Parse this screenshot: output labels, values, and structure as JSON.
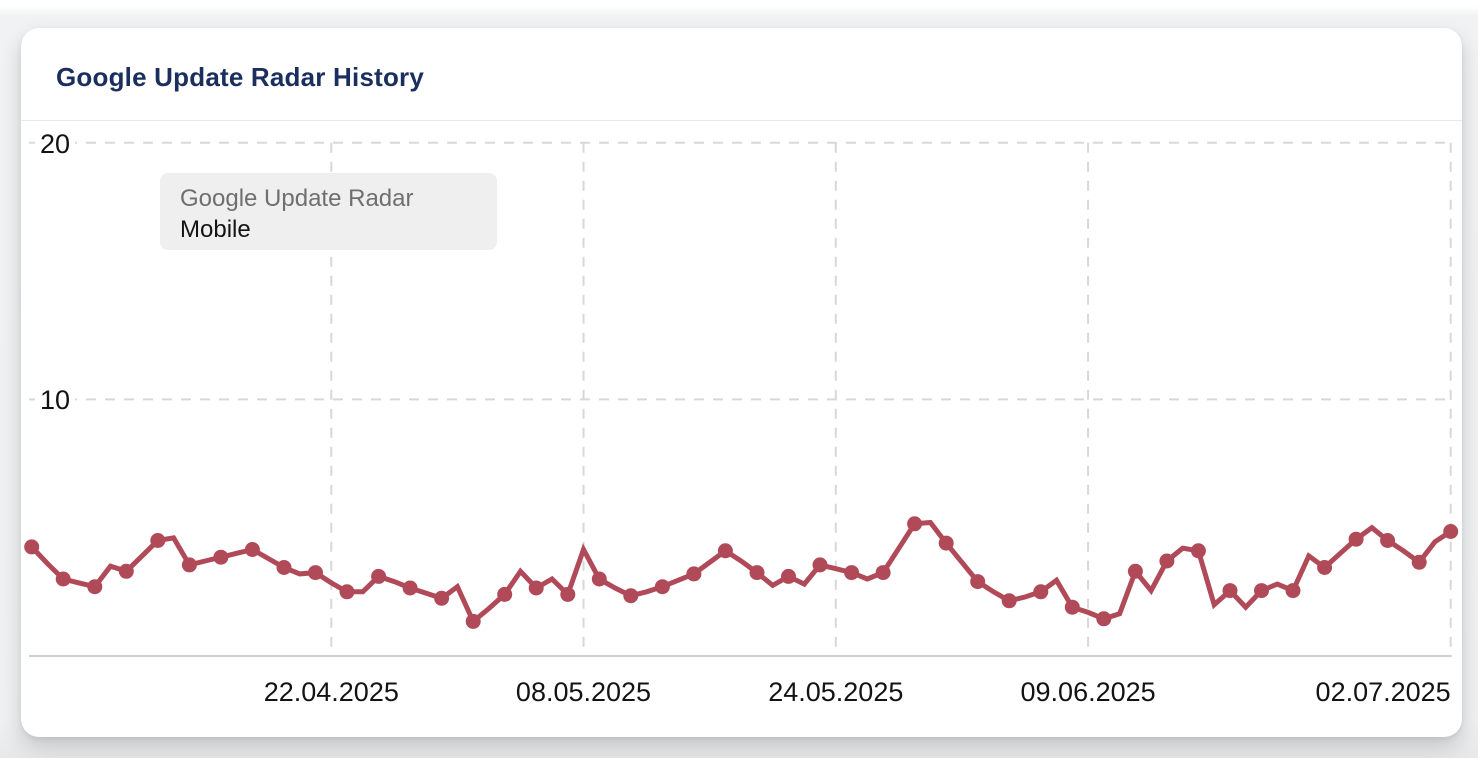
{
  "page": {
    "background": "#f0f1f2"
  },
  "card": {
    "title": "Google Update Radar History"
  },
  "legend": {
    "series_label": "Google Update Radar",
    "device_label": "Mobile"
  },
  "colors": {
    "title": "#1b2f5e",
    "line": "#b04a59",
    "marker": "#b04a59",
    "grid": "#d8d8d8",
    "axis_line": "#cfcfcf",
    "tick_text": "#121212",
    "legend_bg": "#efefef",
    "legend_label": "#6f6f6f",
    "legend_value": "#141414",
    "card_bg": "#ffffff"
  },
  "chart_data": {
    "type": "line",
    "title": "Google Update Radar History",
    "xlabel": "",
    "ylabel": "",
    "ylim": [
      0,
      20
    ],
    "y_ticks": [
      {
        "label": "20",
        "value": 20
      },
      {
        "label": "10",
        "value": 10
      }
    ],
    "x_ticks": [
      {
        "label": "22.04.2025",
        "index": 19,
        "align": "center"
      },
      {
        "label": "08.05.2025",
        "index": 35,
        "align": "center"
      },
      {
        "label": "24.05.2025",
        "index": 51,
        "align": "center"
      },
      {
        "label": "09.06.2025",
        "index": 67,
        "align": "center"
      },
      {
        "label": "02.07.2025",
        "index": 90,
        "align": "right"
      }
    ],
    "grid": "dashed",
    "legend_position": "top-left-inside",
    "marker_rule": "every-second-point-starting-first",
    "series": [
      {
        "name": "Google Update Radar",
        "device": "Mobile",
        "color": "#b04a59",
        "values": [
          4.25,
          3.6,
          3.0,
          2.85,
          2.7,
          3.5,
          3.3,
          3.9,
          4.5,
          4.6,
          3.55,
          3.7,
          3.85,
          4.0,
          4.15,
          3.8,
          3.45,
          3.2,
          3.25,
          2.85,
          2.5,
          2.5,
          3.1,
          2.9,
          2.65,
          2.45,
          2.25,
          2.7,
          1.35,
          1.85,
          2.4,
          3.3,
          2.65,
          3.0,
          2.4,
          4.15,
          3.0,
          2.65,
          2.35,
          2.5,
          2.7,
          2.95,
          3.2,
          3.65,
          4.1,
          3.7,
          3.25,
          2.75,
          3.1,
          2.8,
          3.55,
          3.4,
          3.25,
          3.0,
          3.25,
          4.2,
          5.15,
          5.2,
          4.4,
          3.65,
          2.9,
          2.5,
          2.15,
          2.3,
          2.5,
          2.95,
          1.9,
          1.7,
          1.45,
          1.65,
          3.3,
          2.55,
          3.7,
          4.2,
          4.1,
          2.0,
          2.55,
          1.9,
          2.55,
          2.8,
          2.55,
          3.9,
          3.45,
          4.0,
          4.55,
          5.0,
          4.5,
          4.1,
          3.65,
          4.45,
          4.85
        ]
      }
    ]
  }
}
